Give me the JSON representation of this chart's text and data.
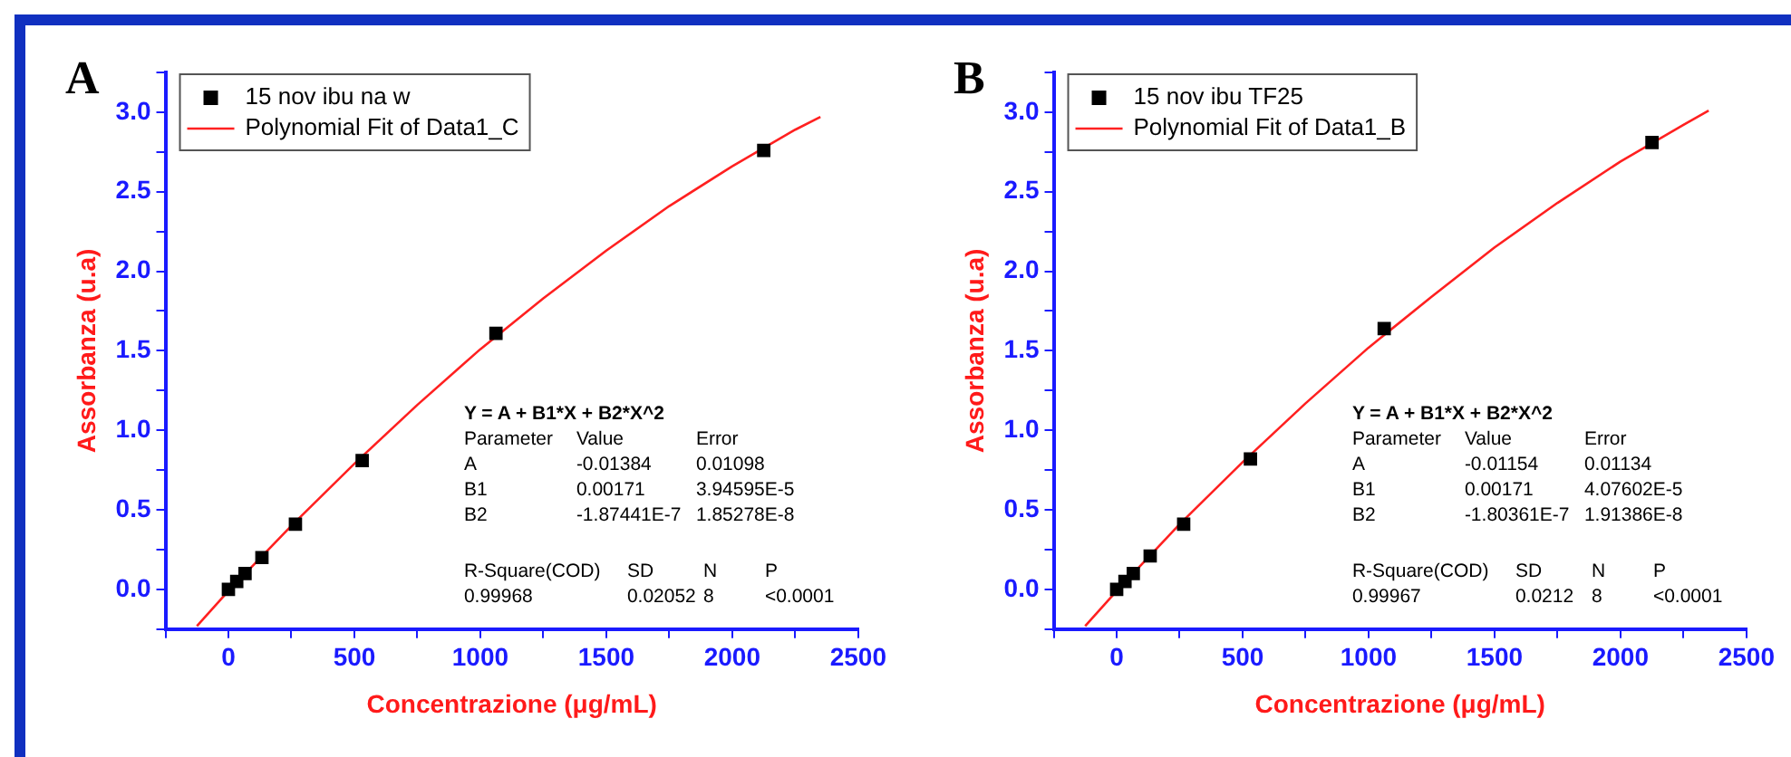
{
  "chart_data": [
    {
      "type": "scatter",
      "title": "A",
      "xlabel": "Concentrazione (μg/mL)",
      "ylabel": "Assorbanza (u.a)",
      "legend": "top left",
      "grid": false,
      "xlim": [
        -250,
        2500
      ],
      "ylim": [
        -0.25,
        3.25
      ],
      "xticks": [
        {
          "value": -250,
          "label": null
        },
        0,
        {
          "value": 250,
          "label": null
        },
        500,
        {
          "value": 750,
          "label": null
        },
        1000,
        {
          "value": 1250,
          "label": null
        },
        1500,
        {
          "value": 1750,
          "label": null
        },
        2000,
        {
          "value": 2250,
          "label": null
        },
        2500
      ],
      "yticks": [
        {
          "value": -0.25,
          "label": null
        },
        {
          "value": 0,
          "label": "0.0"
        },
        {
          "value": 0.25,
          "label": null
        },
        0.5,
        {
          "value": 0.75,
          "label": null
        },
        {
          "value": 1,
          "label": "1.0"
        },
        {
          "value": 1.25,
          "label": null
        },
        1.5,
        {
          "value": 1.75,
          "label": null
        },
        {
          "value": 2,
          "label": "2.0"
        },
        {
          "value": 2.25,
          "label": null
        },
        2.5,
        {
          "value": 2.75,
          "label": null
        },
        {
          "value": 3,
          "label": "3.0"
        },
        {
          "value": 3.25,
          "label": null
        }
      ],
      "series": [
        {
          "name": "15 nov ibu na w",
          "marker": "square",
          "color": "#000000",
          "x": [
            0,
            33,
            66,
            133,
            266,
            531,
            1062,
            2125
          ],
          "values": [
            0,
            0.05,
            0.1,
            0.2,
            0.41,
            0.81,
            1.61,
            2.76
          ]
        },
        {
          "name": "Polynomial Fit of Data1_C",
          "type": "line",
          "marker": "none",
          "color": "#ff2020",
          "x": [
            -125,
            0,
            250,
            500,
            750,
            1000,
            1250,
            1500,
            1750,
            2000,
            2250,
            2350
          ],
          "values": [
            -0.23,
            -0.01,
            0.4,
            0.79,
            1.16,
            1.51,
            1.83,
            2.13,
            2.41,
            2.66,
            2.89,
            2.97
          ]
        }
      ],
      "annotations": [
        "Y = A + B1*X + B2*X^2",
        "Parameter",
        "Value",
        "Error",
        "A",
        "-0.01384",
        "0.01098",
        "B1",
        "0.00171",
        "3.94595E-5",
        "B2",
        "-1.87441E-7",
        "1.85278E-8",
        "R-Square(COD)",
        "SD",
        "N",
        "P",
        "0.99968",
        "0.02052",
        "8",
        "<0.0001"
      ]
    },
    {
      "type": "scatter",
      "title": "B",
      "xlabel": "Concentrazione (μg/mL)",
      "ylabel": "Assorbanza (u.a)",
      "legend": "top left",
      "grid": false,
      "xlim": [
        -250,
        2500
      ],
      "ylim": [
        -0.25,
        3.25
      ],
      "xticks": [
        {
          "value": -250,
          "label": null
        },
        0,
        {
          "value": 250,
          "label": null
        },
        500,
        {
          "value": 750,
          "label": null
        },
        1000,
        {
          "value": 1250,
          "label": null
        },
        1500,
        {
          "value": 1750,
          "label": null
        },
        2000,
        {
          "value": 2250,
          "label": null
        },
        2500
      ],
      "yticks": [
        {
          "value": -0.25,
          "label": null
        },
        {
          "value": 0,
          "label": "0.0"
        },
        {
          "value": 0.25,
          "label": null
        },
        0.5,
        {
          "value": 0.75,
          "label": null
        },
        {
          "value": 1,
          "label": "1.0"
        },
        {
          "value": 1.25,
          "label": null
        },
        1.5,
        {
          "value": 1.75,
          "label": null
        },
        {
          "value": 2,
          "label": "2.0"
        },
        {
          "value": 2.25,
          "label": null
        },
        2.5,
        {
          "value": 2.75,
          "label": null
        },
        {
          "value": 3,
          "label": "3.0"
        },
        {
          "value": 3.25,
          "label": null
        }
      ],
      "series": [
        {
          "name": "15 nov ibu TF25",
          "marker": "square",
          "color": "#000000",
          "x": [
            0,
            33,
            66,
            133,
            266,
            531,
            1062,
            2125
          ],
          "values": [
            0,
            0.05,
            0.1,
            0.21,
            0.41,
            0.82,
            1.64,
            2.81
          ]
        },
        {
          "name": "Polynomial Fit of Data1_B",
          "type": "line",
          "marker": "none",
          "color": "#ff2020",
          "x": [
            -125,
            0,
            250,
            500,
            750,
            1000,
            1250,
            1500,
            1750,
            2000,
            2250,
            2350
          ],
          "values": [
            -0.23,
            -0.01,
            0.41,
            0.8,
            1.17,
            1.52,
            1.84,
            2.15,
            2.43,
            2.69,
            2.92,
            3.01
          ]
        }
      ],
      "annotations": [
        "Y = A + B1*X + B2*X^2",
        "Parameter",
        "Value",
        "Error",
        "A",
        "-0.01154",
        "0.01134",
        "B1",
        "0.00171",
        "4.07602E-5",
        "B2",
        "-1.80361E-7",
        "1.91386E-8",
        "R-Square(COD)",
        "SD",
        "N",
        "P",
        "0.99967",
        "0.0212",
        "8",
        "<0.0001"
      ]
    }
  ]
}
